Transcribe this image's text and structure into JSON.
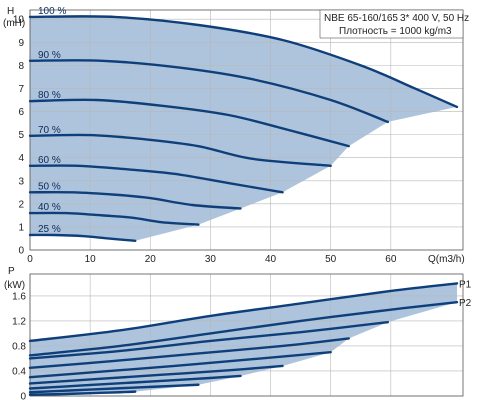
{
  "chart_data": [
    {
      "type": "line",
      "title": "NBE 65-160/165",
      "subtitle": "3* 400 V, 50 Hz",
      "annotation": "Плотность = 1000 kg/m3",
      "xlabel": "Q(m3/h)",
      "ylabel_top": "H",
      "ylabel_unit": "(mH)",
      "xlim": [
        0,
        72
      ],
      "ylim": [
        0,
        10.4
      ],
      "xticks": [
        0,
        10,
        20,
        30,
        40,
        50,
        60
      ],
      "yticks": [
        0,
        1,
        2,
        3,
        4,
        5,
        6,
        7,
        8,
        9,
        10
      ],
      "grid": true,
      "region_fill": "#adc4dc",
      "curve_color": "#0f3f7a",
      "series": [
        {
          "name": "100 %",
          "x": [
            0,
            14,
            28,
            42,
            55,
            64,
            71
          ],
          "y": [
            10.1,
            10.1,
            9.75,
            9.1,
            8.0,
            7.0,
            6.2
          ]
        },
        {
          "name": "90 %",
          "x": [
            0,
            12,
            25,
            37,
            50,
            59.5
          ],
          "y": [
            8.2,
            8.2,
            7.9,
            7.4,
            6.5,
            5.55
          ]
        },
        {
          "name": "80 %",
          "x": [
            0,
            11,
            22,
            33,
            43,
            53
          ],
          "y": [
            6.45,
            6.5,
            6.25,
            5.85,
            5.2,
            4.5
          ]
        },
        {
          "name": "70 %",
          "x": [
            0,
            10,
            19,
            28,
            37,
            50
          ],
          "y": [
            4.95,
            4.98,
            4.8,
            4.5,
            3.95,
            3.65
          ]
        },
        {
          "name": "60 %",
          "x": [
            0,
            8,
            16,
            24,
            33,
            42
          ],
          "y": [
            3.65,
            3.65,
            3.5,
            3.3,
            2.9,
            2.5
          ]
        },
        {
          "name": "50 %",
          "x": [
            0,
            7,
            14,
            20,
            27,
            35
          ],
          "y": [
            2.5,
            2.5,
            2.4,
            2.25,
            1.95,
            1.8
          ]
        },
        {
          "name": "40 %",
          "x": [
            0,
            6,
            12,
            17,
            22,
            28
          ],
          "y": [
            1.6,
            1.6,
            1.5,
            1.4,
            1.2,
            1.1
          ]
        },
        {
          "name": "25 %",
          "x": [
            0,
            4,
            9,
            13,
            17.5
          ],
          "y": [
            0.65,
            0.65,
            0.6,
            0.5,
            0.4
          ]
        }
      ]
    },
    {
      "type": "line",
      "xlabel": "",
      "ylabel_top": "P",
      "ylabel_unit": "(kW)",
      "xlim": [
        0,
        72
      ],
      "ylim": [
        0,
        1.95
      ],
      "yticks": [
        0,
        0.4,
        0.8,
        1.2,
        1.6
      ],
      "ytick_labels": [
        "0",
        "0.4",
        "0.8",
        "1.2",
        "1.6"
      ],
      "grid": true,
      "region_fill": "#adc4dc",
      "curve_color": "#0f3f7a",
      "series": [
        {
          "name": "P1",
          "x": [
            0,
            15,
            30,
            45,
            60,
            71
          ],
          "y": [
            0.88,
            1.05,
            1.28,
            1.48,
            1.68,
            1.8
          ]
        },
        {
          "name": "P2",
          "x": [
            0,
            15,
            30,
            45,
            60,
            71
          ],
          "y": [
            0.65,
            0.8,
            1.0,
            1.2,
            1.38,
            1.5
          ]
        },
        {
          "name": "",
          "x": [
            0,
            15,
            30,
            45,
            59.5
          ],
          "y": [
            0.6,
            0.72,
            0.88,
            1.02,
            1.18
          ]
        },
        {
          "name": "",
          "x": [
            0,
            14,
            28,
            42,
            53
          ],
          "y": [
            0.45,
            0.56,
            0.68,
            0.8,
            0.92
          ]
        },
        {
          "name": "",
          "x": [
            0,
            12,
            24,
            36,
            50
          ],
          "y": [
            0.3,
            0.39,
            0.48,
            0.58,
            0.7
          ]
        },
        {
          "name": "",
          "x": [
            0,
            11,
            22,
            33,
            42
          ],
          "y": [
            0.2,
            0.27,
            0.34,
            0.41,
            0.48
          ]
        },
        {
          "name": "",
          "x": [
            0,
            9,
            18,
            27,
            35
          ],
          "y": [
            0.12,
            0.17,
            0.22,
            0.27,
            0.32
          ]
        },
        {
          "name": "",
          "x": [
            0,
            7,
            14,
            21,
            28
          ],
          "y": [
            0.06,
            0.09,
            0.12,
            0.15,
            0.18
          ]
        },
        {
          "name": "",
          "x": [
            0,
            5,
            10,
            15,
            17.5
          ],
          "y": [
            0.02,
            0.03,
            0.045,
            0.06,
            0.07
          ]
        }
      ]
    }
  ]
}
